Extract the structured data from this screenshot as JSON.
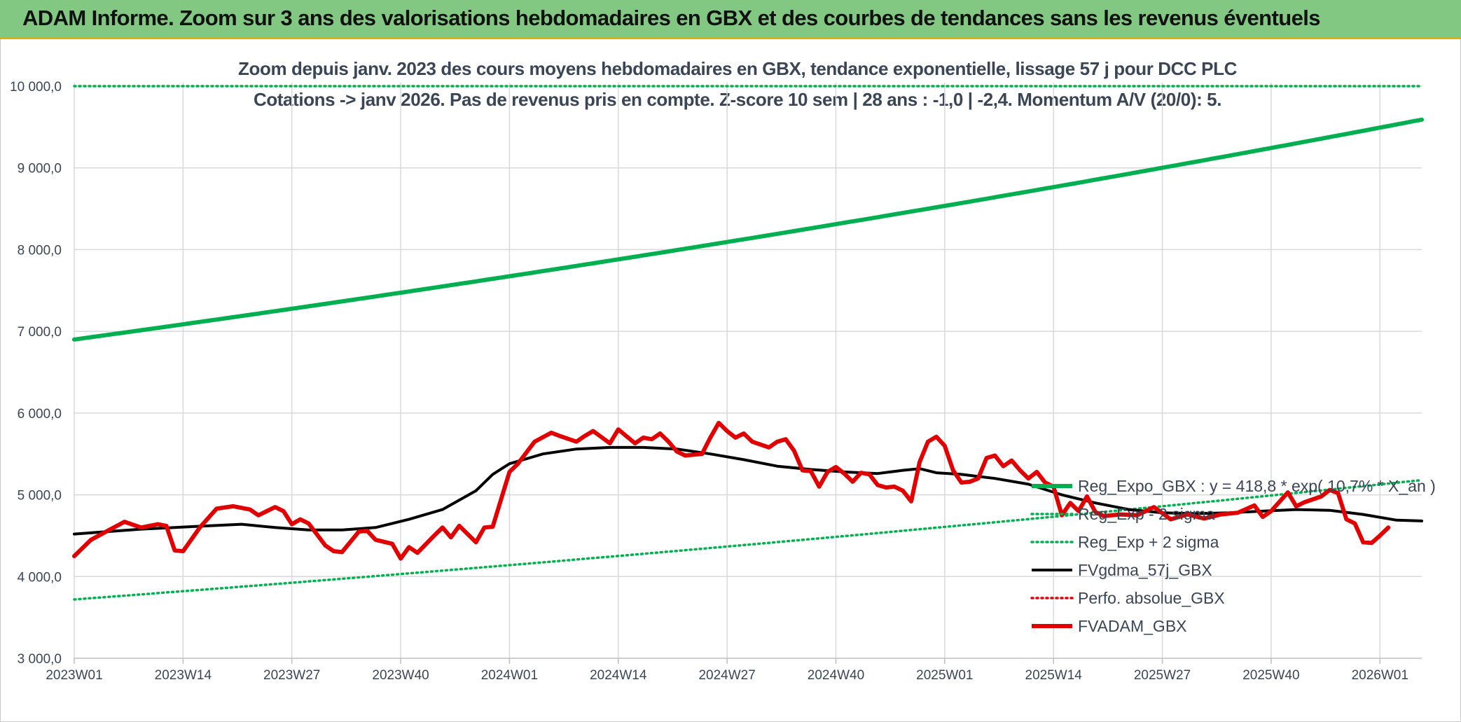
{
  "banner": {
    "title": "ADAM Informe. Zoom sur 3 ans des valorisations hebdomadaires en GBX et des courbes de tendances sans les revenus éventuels"
  },
  "chart_data": {
    "type": "line",
    "title": "Zoom depuis janv. 2023 des cours moyens hebdomadaires en GBX, tendance exponentielle, lissage 57 j pour DCC PLC",
    "subtitle": "Cotations -> janv 2026. Pas de revenus pris en compte. Z-score 10 sem | 28 ans : -1,0 | -2,4. Momentum A/V (20/0): 5.",
    "xlabel": "",
    "ylabel": "",
    "ylim": [
      3000,
      10000
    ],
    "yticks": [
      "3 000,0",
      "4 000,0",
      "5 000,0",
      "6 000,0",
      "7 000,0",
      "8 000,0",
      "9 000,0",
      "10 000,0"
    ],
    "yticks_values": [
      3000,
      4000,
      5000,
      6000,
      7000,
      8000,
      9000,
      10000
    ],
    "xtick_labels": [
      "2023W01",
      "2023W14",
      "2023W27",
      "2023W40",
      "2024W01",
      "2024W14",
      "2024W27",
      "2024W40",
      "2025W01",
      "2025W14",
      "2025W27",
      "2025W40",
      "2026W01"
    ],
    "xtick_index": [
      0,
      13,
      26,
      39,
      52,
      65,
      78,
      91,
      104,
      117,
      130,
      143,
      156
    ],
    "n_weeks": 162,
    "grid": true,
    "legend_position": "right-center",
    "series": [
      {
        "name": "Reg_Expo_GBX : y = 418,8 * exp( 10,7% * X_an )",
        "color": "#00b050",
        "style": "solid-thick",
        "type": "exponential",
        "start": 6900,
        "end": 9590
      },
      {
        "name": "Reg_Exp - 2 sigma",
        "color": "#00b050",
        "style": "dotted",
        "type": "exponential",
        "start": 3720,
        "end": 5180
      },
      {
        "name": "Reg_Exp + 2 sigma",
        "color": "#00b050",
        "style": "dotted",
        "type": "constant",
        "value": 10000
      },
      {
        "name": "FVgdma_57j_GBX",
        "color": "#000000",
        "style": "solid",
        "points": [
          [
            0,
            4520
          ],
          [
            8,
            4580
          ],
          [
            16,
            4620
          ],
          [
            20,
            4640
          ],
          [
            24,
            4600
          ],
          [
            28,
            4570
          ],
          [
            32,
            4570
          ],
          [
            36,
            4600
          ],
          [
            40,
            4700
          ],
          [
            44,
            4820
          ],
          [
            48,
            5050
          ],
          [
            50,
            5250
          ],
          [
            52,
            5380
          ],
          [
            56,
            5500
          ],
          [
            60,
            5560
          ],
          [
            64,
            5580
          ],
          [
            68,
            5580
          ],
          [
            72,
            5560
          ],
          [
            76,
            5500
          ],
          [
            80,
            5430
          ],
          [
            84,
            5350
          ],
          [
            88,
            5310
          ],
          [
            92,
            5280
          ],
          [
            96,
            5260
          ],
          [
            99,
            5300
          ],
          [
            101,
            5320
          ],
          [
            103,
            5270
          ],
          [
            106,
            5250
          ],
          [
            110,
            5200
          ],
          [
            114,
            5130
          ],
          [
            118,
            5000
          ],
          [
            122,
            4900
          ],
          [
            126,
            4820
          ],
          [
            130,
            4780
          ],
          [
            134,
            4770
          ],
          [
            138,
            4780
          ],
          [
            142,
            4800
          ],
          [
            146,
            4820
          ],
          [
            150,
            4810
          ],
          [
            154,
            4760
          ],
          [
            158,
            4690
          ],
          [
            161,
            4680
          ]
        ]
      },
      {
        "name": "Perfo. absolue_GBX",
        "color": "#e00000",
        "style": "dotted",
        "points": []
      },
      {
        "name": "FVADAM_GBX",
        "color": "#e00000",
        "style": "solid-thick",
        "points": [
          [
            0,
            4250
          ],
          [
            2,
            4450
          ],
          [
            4,
            4560
          ],
          [
            6,
            4670
          ],
          [
            8,
            4600
          ],
          [
            10,
            4640
          ],
          [
            11,
            4620
          ],
          [
            12,
            4320
          ],
          [
            13,
            4310
          ],
          [
            15,
            4600
          ],
          [
            17,
            4830
          ],
          [
            19,
            4860
          ],
          [
            21,
            4820
          ],
          [
            22,
            4750
          ],
          [
            24,
            4850
          ],
          [
            25,
            4800
          ],
          [
            26,
            4640
          ],
          [
            27,
            4700
          ],
          [
            28,
            4650
          ],
          [
            30,
            4380
          ],
          [
            31,
            4310
          ],
          [
            32,
            4300
          ],
          [
            34,
            4550
          ],
          [
            35,
            4560
          ],
          [
            36,
            4450
          ],
          [
            38,
            4400
          ],
          [
            39,
            4220
          ],
          [
            40,
            4360
          ],
          [
            41,
            4290
          ],
          [
            43,
            4500
          ],
          [
            44,
            4600
          ],
          [
            45,
            4480
          ],
          [
            46,
            4620
          ],
          [
            48,
            4420
          ],
          [
            49,
            4600
          ],
          [
            50,
            4610
          ],
          [
            52,
            5280
          ],
          [
            53,
            5380
          ],
          [
            55,
            5650
          ],
          [
            57,
            5760
          ],
          [
            58,
            5720
          ],
          [
            60,
            5650
          ],
          [
            61,
            5720
          ],
          [
            62,
            5780
          ],
          [
            64,
            5630
          ],
          [
            65,
            5800
          ],
          [
            67,
            5630
          ],
          [
            68,
            5700
          ],
          [
            69,
            5680
          ],
          [
            70,
            5750
          ],
          [
            71,
            5650
          ],
          [
            72,
            5530
          ],
          [
            73,
            5480
          ],
          [
            75,
            5500
          ],
          [
            76,
            5700
          ],
          [
            77,
            5880
          ],
          [
            78,
            5780
          ],
          [
            79,
            5700
          ],
          [
            80,
            5750
          ],
          [
            81,
            5650
          ],
          [
            83,
            5580
          ],
          [
            84,
            5650
          ],
          [
            85,
            5680
          ],
          [
            86,
            5540
          ],
          [
            87,
            5300
          ],
          [
            88,
            5290
          ],
          [
            89,
            5100
          ],
          [
            90,
            5280
          ],
          [
            91,
            5340
          ],
          [
            92,
            5260
          ],
          [
            93,
            5160
          ],
          [
            94,
            5270
          ],
          [
            95,
            5250
          ],
          [
            96,
            5120
          ],
          [
            97,
            5090
          ],
          [
            98,
            5100
          ],
          [
            99,
            5050
          ],
          [
            100,
            4920
          ],
          [
            101,
            5400
          ],
          [
            102,
            5650
          ],
          [
            103,
            5710
          ],
          [
            104,
            5600
          ],
          [
            105,
            5300
          ],
          [
            106,
            5150
          ],
          [
            107,
            5160
          ],
          [
            108,
            5200
          ],
          [
            109,
            5450
          ],
          [
            110,
            5480
          ],
          [
            111,
            5350
          ],
          [
            112,
            5420
          ],
          [
            113,
            5300
          ],
          [
            114,
            5200
          ],
          [
            115,
            5280
          ],
          [
            116,
            5150
          ],
          [
            117,
            5100
          ],
          [
            118,
            4750
          ],
          [
            119,
            4900
          ],
          [
            120,
            4800
          ],
          [
            121,
            4980
          ],
          [
            122,
            4790
          ],
          [
            123,
            4740
          ],
          [
            125,
            4760
          ],
          [
            127,
            4750
          ],
          [
            129,
            4850
          ],
          [
            131,
            4700
          ],
          [
            133,
            4760
          ],
          [
            135,
            4710
          ],
          [
            137,
            4760
          ],
          [
            139,
            4780
          ],
          [
            141,
            4870
          ],
          [
            142,
            4730
          ],
          [
            143,
            4800
          ],
          [
            145,
            5030
          ],
          [
            146,
            4860
          ],
          [
            147,
            4910
          ],
          [
            149,
            4980
          ],
          [
            150,
            5060
          ],
          [
            151,
            5020
          ],
          [
            152,
            4700
          ],
          [
            153,
            4650
          ],
          [
            154,
            4420
          ],
          [
            155,
            4410
          ],
          [
            156,
            4500
          ],
          [
            157,
            4600
          ]
        ]
      }
    ]
  }
}
